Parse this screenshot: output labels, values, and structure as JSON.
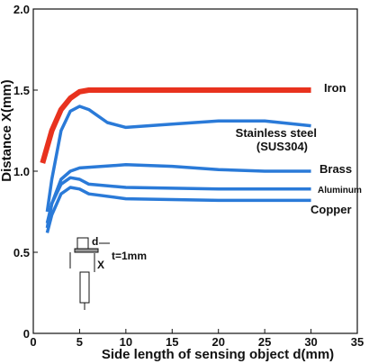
{
  "chart_data": {
    "type": "line",
    "xlabel": "Side length of sensing object d(mm)",
    "ylabel": "Distance X(mm)",
    "xlim": [
      0,
      35
    ],
    "xticks": [
      0,
      5,
      10,
      15,
      20,
      25,
      30,
      35
    ],
    "ylim": [
      0,
      2.0
    ],
    "yticks": [
      0,
      0.5,
      {
        "value": 1.0,
        "label": "1.0"
      },
      1.5,
      {
        "value": 2.0,
        "label": "2.0"
      }
    ],
    "grid": false,
    "series": [
      {
        "name": "Iron",
        "color": "#e8321e",
        "x": [
          1,
          2,
          3,
          4,
          5,
          6,
          10,
          20,
          30
        ],
        "values": [
          1.05,
          1.25,
          1.38,
          1.45,
          1.49,
          1.5,
          1.5,
          1.5,
          1.5
        ]
      },
      {
        "name": "Stainless steel\n(SUS304)",
        "color": "#2a7ad8",
        "x": [
          1.5,
          2,
          3,
          4,
          5,
          6,
          8,
          10,
          15,
          20,
          25,
          30
        ],
        "values": [
          0.75,
          0.95,
          1.25,
          1.37,
          1.4,
          1.38,
          1.3,
          1.27,
          1.29,
          1.31,
          1.31,
          1.28
        ]
      },
      {
        "name": "Brass",
        "color": "#2a7ad8",
        "x": [
          1.5,
          2,
          3,
          4,
          5,
          10,
          15,
          20,
          25,
          30
        ],
        "values": [
          0.65,
          0.8,
          0.95,
          1.0,
          1.02,
          1.04,
          1.03,
          1.01,
          1.0,
          1.0
        ]
      },
      {
        "name": "Aluminum",
        "color": "#2a7ad8",
        "x": [
          1.5,
          2,
          3,
          4,
          5,
          6,
          10,
          20,
          30
        ],
        "values": [
          0.68,
          0.8,
          0.92,
          0.96,
          0.95,
          0.92,
          0.9,
          0.89,
          0.89
        ]
      },
      {
        "name": "Copper",
        "color": "#2a7ad8",
        "x": [
          1.5,
          2,
          3,
          4,
          5,
          6,
          10,
          20,
          30
        ],
        "values": [
          0.62,
          0.73,
          0.86,
          0.9,
          0.89,
          0.86,
          0.83,
          0.82,
          0.82
        ]
      }
    ],
    "annotations": [
      "d",
      "X",
      "t=1mm"
    ]
  }
}
